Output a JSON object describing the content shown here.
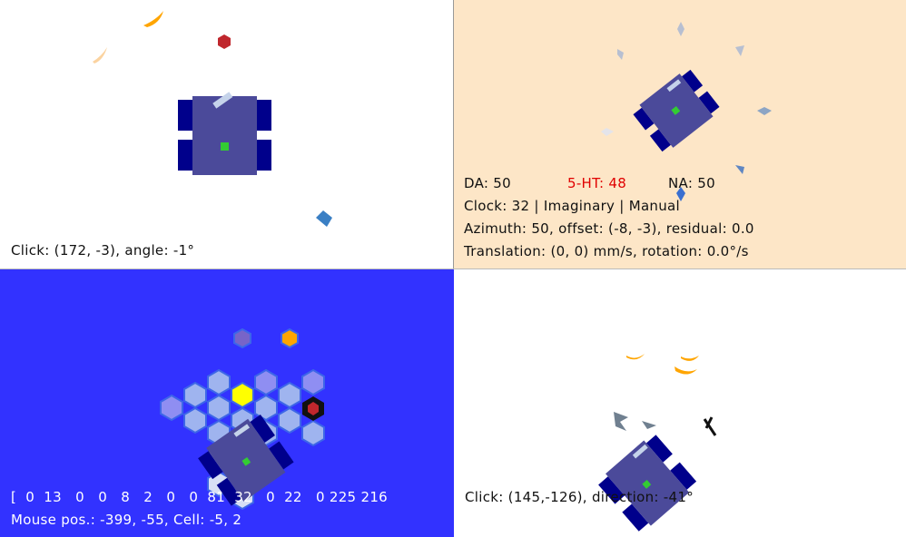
{
  "panels": {
    "top_left": {
      "status": "Click: (172, -3), angle: -1°",
      "colors": {
        "background": "#ffffff",
        "robot_body": "#4b4a9a",
        "wheels": "#00008b",
        "marker": "#33cc33"
      }
    },
    "top_right": {
      "neuro": {
        "da": "DA: 50",
        "ht": "5-HT: 48",
        "na": "NA: 50"
      },
      "clock": "Clock: 32 | Imaginary | Manual",
      "azimuth": "Azimuth: 50, offset: (-8, -3), residual: 0.0",
      "translation": "Translation: (0, 0) mm/s, rotation: 0.0°/s",
      "colors": {
        "background": "#fde6c7",
        "accent": "#e00000"
      }
    },
    "bottom_left": {
      "array_text": "[  0  13   0   0   8   2   0   0  81  32   0  22   0 225 216",
      "mouse_pos": "Mouse pos.: -399, -55, Cell: -5, 2",
      "colors": {
        "background": "#3232ff",
        "cell": "#9fb4ef",
        "highlight": "#ffff00",
        "target": "#ff9900"
      }
    },
    "bottom_right": {
      "status": "Click: (145,-126), direction: -41°",
      "colors": {
        "background": "#ffffff",
        "food": "#ffa500"
      }
    }
  }
}
